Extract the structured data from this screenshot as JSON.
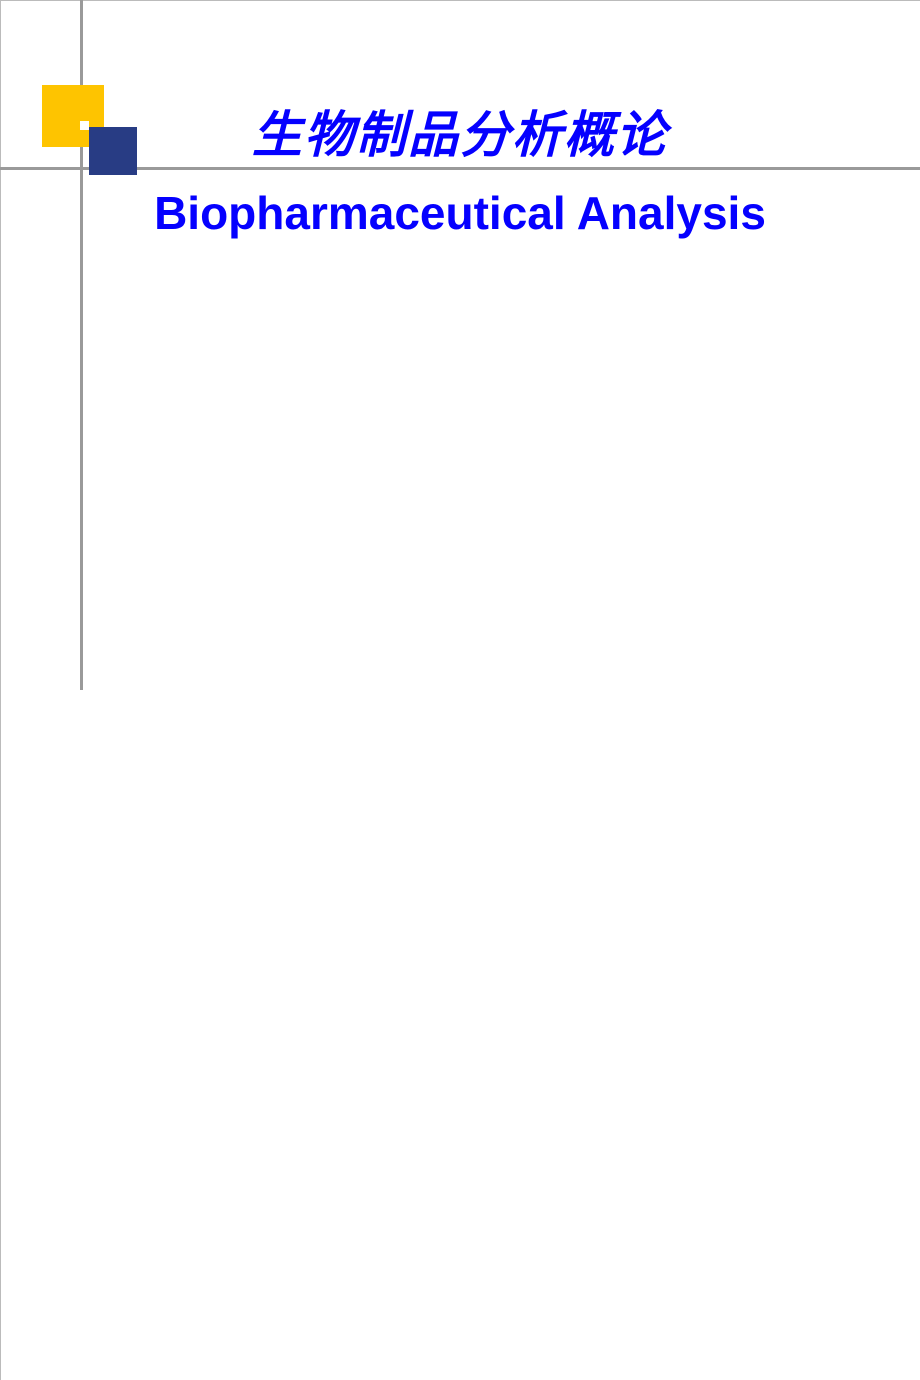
{
  "slide": {
    "title_chinese": "生物制品分析概论",
    "title_english": "Biopharmaceutical Analysis",
    "styling": {
      "background_color": "#ffffff",
      "text_color": "#0500ff",
      "title_chinese_fontsize": 50,
      "title_chinese_fontweight": "bold",
      "title_chinese_fontstyle": "italic",
      "title_english_fontsize": 46,
      "title_english_fontweight": "bold",
      "decoration": {
        "yellow_square_color": "#fec400",
        "navy_square_color": "#283c84",
        "line_color": "#9a9a9a",
        "white_square_color": "#ffffff",
        "border_color": "#bbbbbb"
      }
    }
  }
}
